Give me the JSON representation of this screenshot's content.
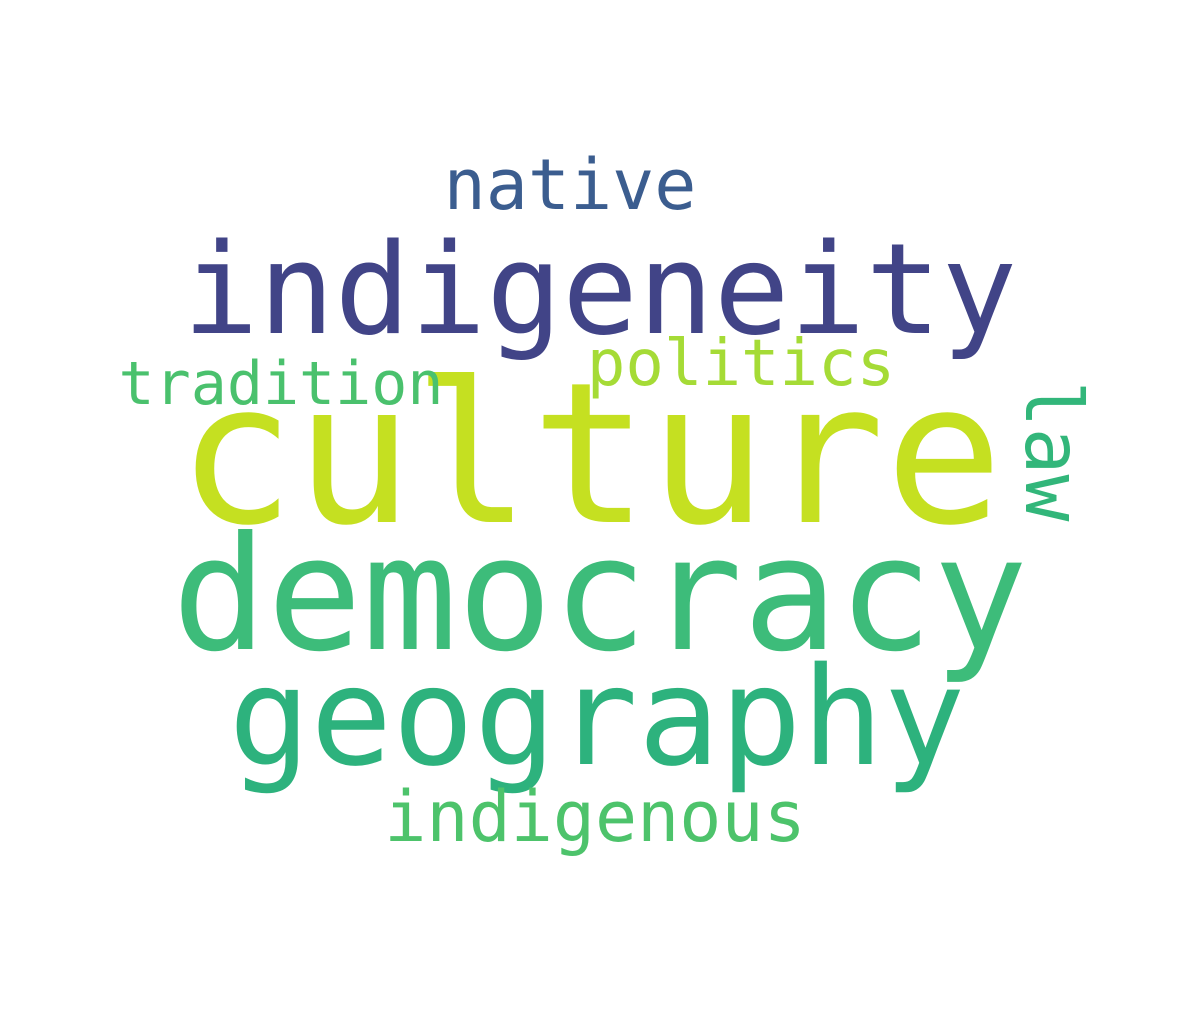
{
  "word_cloud": {
    "words": [
      {
        "id": "culture",
        "text": "culture",
        "color": "#c5e021"
      },
      {
        "id": "democracy",
        "text": "democracy",
        "color": "#3dbc7a"
      },
      {
        "id": "indigeneity",
        "text": "indigeneity",
        "color": "#414487"
      },
      {
        "id": "geography",
        "text": "geography",
        "color": "#2db27d"
      },
      {
        "id": "native",
        "text": "native",
        "color": "#3b5d8f"
      },
      {
        "id": "indigenous",
        "text": "indigenous",
        "color": "#4dc36b"
      },
      {
        "id": "politics",
        "text": "politics",
        "color": "#a5db36"
      },
      {
        "id": "tradition",
        "text": "tradition",
        "color": "#4ac16d"
      },
      {
        "id": "law",
        "text": "law",
        "color": "#32b67a"
      }
    ]
  }
}
